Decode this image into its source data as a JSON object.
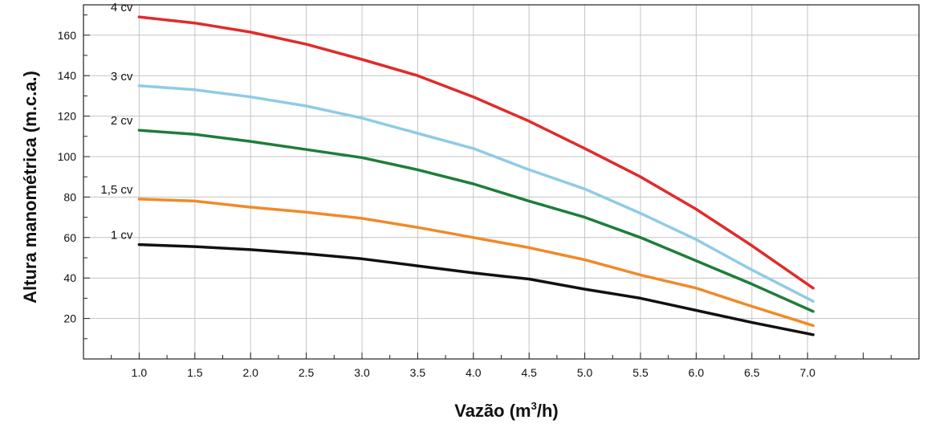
{
  "chart_data": {
    "type": "line",
    "xlabel": "Vazão (m",
    "xlabel_sup": "3",
    "xlabel_tail": "/h)",
    "ylabel": "Altura manométrica (m.c.a.)",
    "xlim": [
      0.5,
      8.0
    ],
    "ylim": [
      0,
      175
    ],
    "x_ticks": [
      1.0,
      1.5,
      2.0,
      2.5,
      3.0,
      3.5,
      4.0,
      4.5,
      5.0,
      5.5,
      6.0,
      6.5,
      7.0
    ],
    "x_tick_labels": [
      "1.0",
      "1.5",
      "2.0",
      "2.5",
      "3.0",
      "3.5",
      "4.0",
      "4.5",
      "5.0",
      "5.5",
      "6.0",
      "6.5",
      "7.0"
    ],
    "y_ticks": [
      20,
      40,
      60,
      80,
      100,
      120,
      140,
      160
    ],
    "y_tick_labels": [
      "20",
      "40",
      "60",
      "80",
      "100",
      "120",
      "140",
      "160"
    ],
    "grid": true,
    "legend": "inline labels at line starts",
    "series": [
      {
        "name": "4 cv",
        "color": "#e02b2b",
        "x": [
          1.0,
          1.5,
          2.0,
          2.5,
          3.0,
          3.5,
          4.0,
          4.5,
          5.0,
          5.5,
          6.0,
          6.5,
          7.05
        ],
        "y": [
          169,
          166,
          161.5,
          155.5,
          148,
          140,
          129.5,
          117.5,
          104,
          90,
          74,
          56,
          35
        ]
      },
      {
        "name": "3 cv",
        "color": "#8fcbe6",
        "x": [
          1.0,
          1.5,
          2.0,
          2.5,
          3.0,
          3.5,
          4.0,
          4.5,
          5.0,
          5.5,
          6.0,
          6.5,
          7.05
        ],
        "y": [
          135,
          133,
          129.5,
          125,
          119,
          111.5,
          104,
          93.5,
          84,
          72,
          59,
          44,
          28.5
        ]
      },
      {
        "name": "2 cv",
        "color": "#1f7d3a",
        "x": [
          1.0,
          1.5,
          2.0,
          2.5,
          3.0,
          3.5,
          4.0,
          4.5,
          5.0,
          5.5,
          6.0,
          6.5,
          7.05
        ],
        "y": [
          113,
          111,
          107.5,
          103.5,
          99.5,
          93.5,
          86.5,
          78,
          70,
          60,
          48.5,
          37,
          23.5
        ]
      },
      {
        "name": "1,5 cv",
        "color": "#f08a2a",
        "x": [
          1.0,
          1.5,
          2.0,
          2.5,
          3.0,
          3.5,
          4.0,
          4.5,
          5.0,
          5.5,
          6.0,
          6.5,
          7.05
        ],
        "y": [
          79,
          78,
          75,
          72.5,
          69.5,
          65,
          60,
          55,
          49,
          41.5,
          35,
          26,
          16.5
        ]
      },
      {
        "name": "1 cv",
        "color": "#111111",
        "x": [
          1.0,
          1.5,
          2.0,
          2.5,
          3.0,
          3.5,
          4.0,
          4.5,
          5.0,
          5.5,
          6.0,
          6.5,
          7.05
        ],
        "y": [
          56.5,
          55.5,
          54,
          52,
          49.5,
          46,
          42.5,
          39.5,
          34.5,
          30,
          24,
          18,
          12
        ]
      }
    ]
  }
}
